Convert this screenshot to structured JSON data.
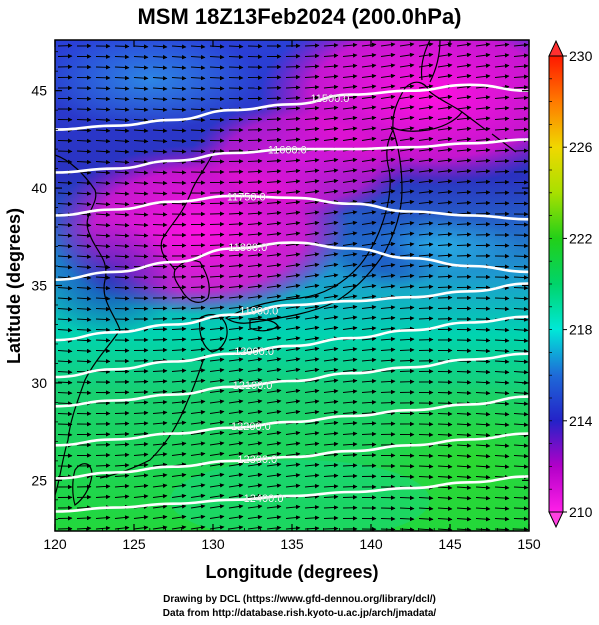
{
  "title": "MSM 18Z13Feb2024 (200.0hPa)",
  "footer": {
    "line1": "Drawing by DCL (https://www.gfd-dennou.org/library/dcl/)",
    "line2": "Data from http://database.rish.kyoto-u.ac.jp/arch/jmadata/"
  },
  "chart_data": {
    "type": "heatmap",
    "xlabel": "Longitude (degrees)",
    "ylabel": "Latitude  (degrees)",
    "xlim": [
      120,
      150
    ],
    "ylim": [
      22.4,
      47.6
    ],
    "xticks": [
      "120",
      "125",
      "130",
      "135",
      "140",
      "145",
      "150"
    ],
    "yticks": [
      "25",
      "30",
      "35",
      "40",
      "45"
    ],
    "colorbar": {
      "range": [
        210,
        230
      ],
      "ticks": [
        "210",
        "214",
        "218",
        "222",
        "226",
        "230"
      ]
    },
    "contours": [
      {
        "label": "11500.0",
        "lat": [
          43.0,
          43.2,
          43.5,
          44.0,
          44.3,
          44.8,
          45.0,
          45.3,
          45.0
        ]
      },
      {
        "label": "11600.0",
        "lat": [
          40.8,
          41.0,
          41.4,
          41.8,
          42.0,
          42.0,
          42.1,
          42.3,
          42.5
        ]
      },
      {
        "label": "11750.0",
        "lat": [
          38.6,
          38.9,
          39.3,
          39.6,
          39.5,
          39.2,
          38.8,
          38.6,
          38.4
        ]
      },
      {
        "label": "11800.0",
        "lat": [
          35.3,
          35.7,
          36.2,
          36.9,
          37.2,
          36.9,
          36.4,
          36.0,
          35.7
        ]
      },
      {
        "label": "11900.0",
        "lat": [
          32.2,
          32.6,
          33.0,
          33.5,
          34.0,
          34.2,
          34.4,
          34.7,
          35.1
        ]
      },
      {
        "label": "12000.0",
        "lat": [
          30.3,
          30.7,
          31.1,
          31.5,
          31.9,
          32.3,
          32.7,
          33.1,
          33.4
        ]
      },
      {
        "label": "12100.0",
        "lat": [
          28.8,
          29.1,
          29.4,
          29.8,
          30.1,
          30.5,
          30.8,
          31.2,
          31.5
        ]
      },
      {
        "label": "12200.0",
        "lat": [
          26.8,
          27.1,
          27.4,
          27.7,
          28.0,
          28.3,
          28.6,
          28.9,
          29.3
        ]
      },
      {
        "label": "12300.0",
        "lat": [
          25.1,
          25.4,
          25.7,
          26.0,
          26.2,
          26.5,
          26.8,
          27.1,
          27.4
        ]
      },
      {
        "label": "12400.0",
        "lat": [
          23.4,
          23.6,
          23.8,
          24.0,
          24.2,
          24.4,
          24.6,
          24.9,
          25.2
        ]
      }
    ],
    "contour_lons": [
      120,
      123.75,
      127.5,
      131.25,
      135,
      138.75,
      142.5,
      146.25,
      150
    ],
    "contour_label_lons": [
      137.4,
      134.7,
      132.1,
      132.2,
      132.9,
      132.6,
      132.5,
      132.4,
      132.8,
      133.2
    ]
  },
  "colors": {
    "contour": "#ffffff",
    "coast": "#000000",
    "arrow": "#000000"
  }
}
